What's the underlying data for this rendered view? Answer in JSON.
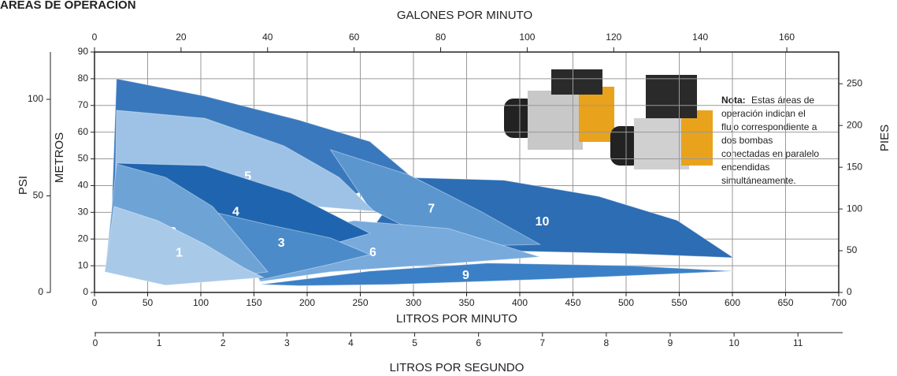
{
  "chart_data": {
    "type": "area",
    "title": "ÁREAS DE OPERACIÓN",
    "x_label": "LITROS POR MINUTO",
    "xlim": [
      0,
      700
    ],
    "xticks": [
      0,
      50,
      100,
      150,
      200,
      250,
      300,
      350,
      400,
      450,
      500,
      550,
      600,
      650,
      700
    ],
    "x2_label": "GALONES POR MINUTO",
    "x2lim": [
      0,
      172
    ],
    "x2ticks": [
      0,
      20,
      40,
      60,
      80,
      100,
      120,
      140,
      160
    ],
    "x3_label": "LITROS POR SEGUNDO",
    "x3lim": [
      0,
      11.7
    ],
    "x3ticks": [
      0,
      1,
      2,
      3,
      4,
      5,
      6,
      7,
      8,
      9,
      10,
      11
    ],
    "y_label": "METROS",
    "ylim": [
      0,
      90
    ],
    "yticks": [
      0,
      10,
      20,
      30,
      40,
      50,
      60,
      70,
      80,
      90
    ],
    "y2_label": "PSI",
    "y2lim": [
      0,
      124.5
    ],
    "y2ticks": [
      0,
      50,
      100
    ],
    "y3_label": "PIES",
    "y3lim": [
      0,
      288
    ],
    "y3ticks": [
      0,
      50,
      100,
      150,
      200,
      250
    ],
    "grid": true,
    "series": [
      {
        "name": "10",
        "color": "#2c6db4",
        "x": [
          296,
          385,
          474,
          548,
          601,
          504,
          393,
          326,
          263
        ],
        "y": [
          43,
          42,
          36,
          27,
          13,
          14.5,
          15.5,
          21,
          25
        ]
      },
      {
        "name": "9",
        "color": "#3b80c6",
        "x": [
          156,
          259,
          370,
          504,
          601,
          430,
          281,
          193
        ],
        "y": [
          3,
          8,
          11,
          10,
          8,
          5,
          3,
          2.5
        ]
      },
      {
        "name": "8",
        "color": "#3a78bd",
        "x": [
          20.7,
          103.7,
          192.6,
          259,
          296,
          237,
          96.3,
          14.8
        ],
        "y": [
          80,
          73.5,
          64.5,
          56.5,
          44,
          35.7,
          41.6,
          15
        ]
      },
      {
        "name": "7",
        "color": "#5b96cf",
        "x": [
          222,
          296,
          363,
          419,
          363,
          296,
          259
        ],
        "y": [
          53.4,
          44,
          30.4,
          18,
          17.4,
          23.9,
          31.3
        ]
      },
      {
        "name": "6",
        "color": "#78aadc",
        "x": [
          133,
          244,
          333,
          419,
          326,
          222,
          156
        ],
        "y": [
          17.4,
          26.9,
          23.9,
          13.3,
          10.6,
          7.7,
          4.1
        ]
      },
      {
        "name": "5",
        "color": "#9ec2e6",
        "x": [
          20.7,
          103.7,
          178,
          230,
          263,
          207,
          133,
          18.5
        ],
        "y": [
          68.2,
          65.2,
          54.9,
          43.1,
          30.4,
          32.2,
          37.2,
          15
        ]
      },
      {
        "name": "4",
        "color": "#1f64ae",
        "x": [
          13.3,
          20.7,
          103.7,
          185,
          259,
          222,
          156,
          104
        ],
        "y": [
          12.1,
          48.4,
          47.5,
          37.2,
          22.1,
          18,
          23.9,
          30.4
        ]
      },
      {
        "name": "3",
        "color": "#4c8bc9",
        "x": [
          89,
          163,
          222,
          259,
          222,
          156,
          119
        ],
        "y": [
          32.2,
          25.4,
          20.4,
          14.2,
          10.6,
          4.7,
          21
        ]
      },
      {
        "name": "2",
        "color": "#6ea3d6",
        "x": [
          11.1,
          20.7,
          66.7,
          111,
          163,
          133,
          11.1
        ],
        "y": [
          12.1,
          48.1,
          43.1,
          32.2,
          7.7,
          6.2,
          7.7
        ]
      },
      {
        "name": "1",
        "color": "#a9c9e8",
        "x": [
          9.6,
          18.5,
          59.3,
          104,
          141,
          159,
          66.7
        ],
        "y": [
          7.7,
          32.2,
          26.9,
          18,
          9.1,
          5.6,
          2.7
        ]
      }
    ],
    "note": {
      "label": "Nota:",
      "lines": [
        "Estas áreas de",
        "operación indican el",
        "flujo correspondiente a",
        "dos bombas",
        "conectadas en paralelo",
        "encendidas",
        "simultáneamente."
      ]
    }
  }
}
